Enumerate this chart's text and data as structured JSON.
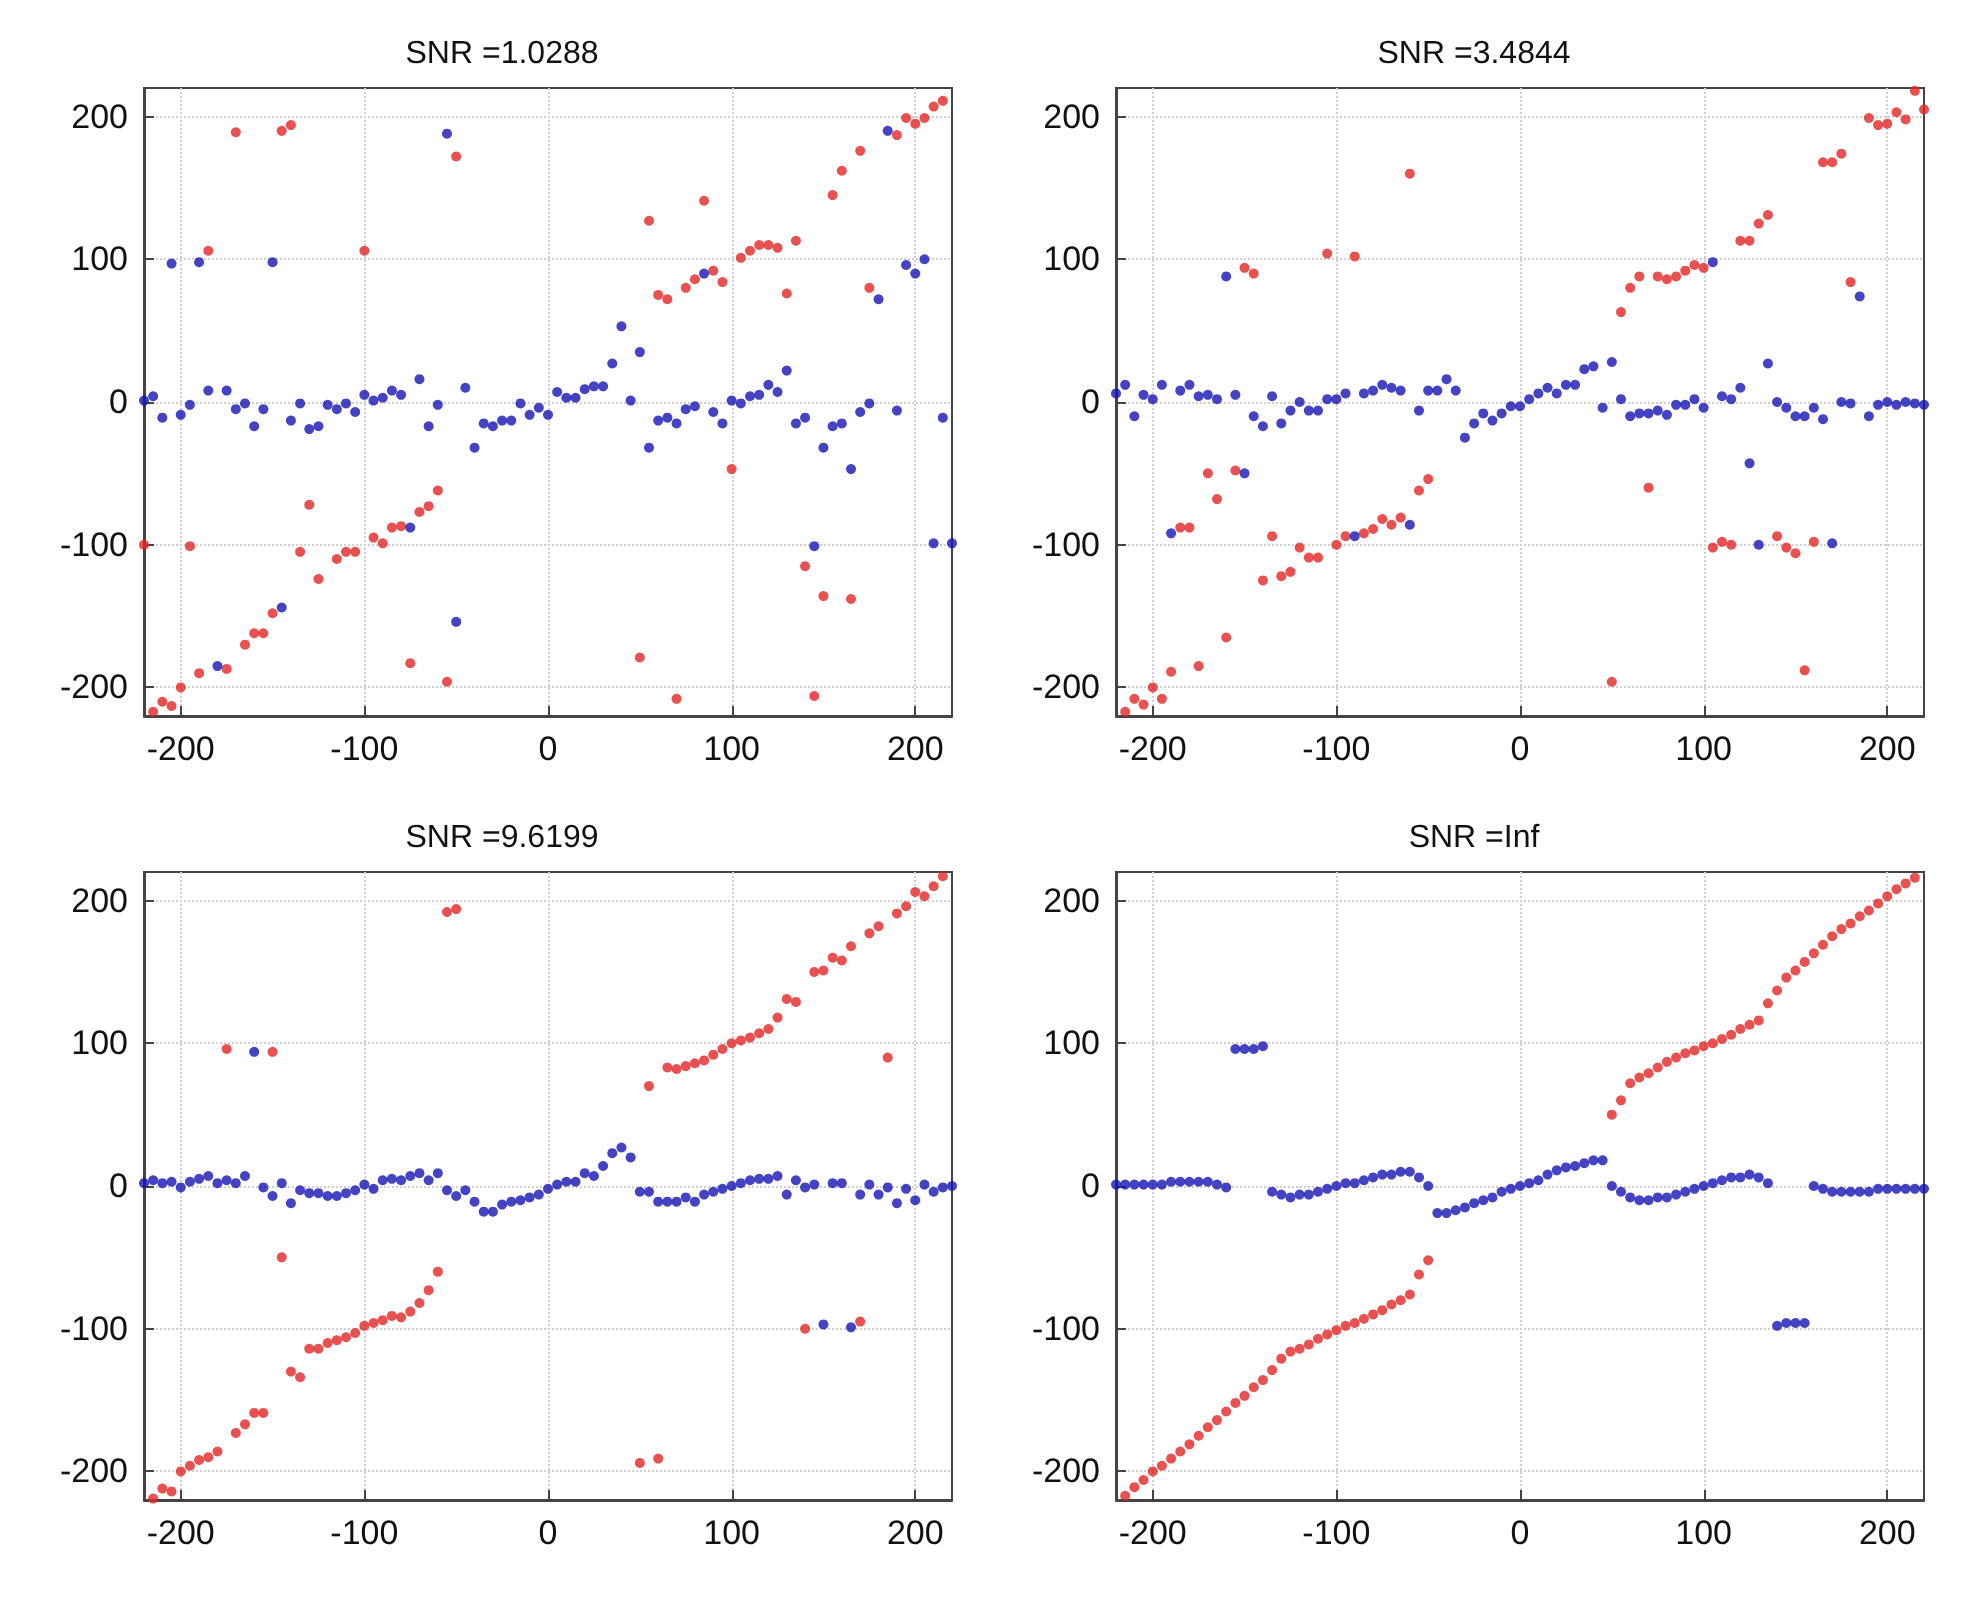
{
  "chart_data": [
    {
      "type": "scatter",
      "title": "SNR =1.0288",
      "xlim": [
        -220,
        220
      ],
      "ylim": [
        -220,
        220
      ],
      "xticks": [
        -200,
        -100,
        0,
        100,
        200
      ],
      "yticks": [
        -200,
        -100,
        0,
        100,
        200
      ],
      "grid": true,
      "marker": "circle",
      "series": [
        {
          "color": "#e32626",
          "x": [
            -220,
            -215,
            -210,
            -205,
            -200,
            -195,
            -190,
            -185,
            -175,
            -170,
            -165,
            -160,
            -155,
            -150,
            -145,
            -140,
            -135,
            -130,
            -125,
            -115,
            -110,
            -105,
            -100,
            -95,
            -90,
            -85,
            -80,
            -75,
            -70,
            -65,
            -60,
            -55,
            -50,
            50,
            55,
            60,
            65,
            70,
            75,
            80,
            85,
            90,
            95,
            100,
            105,
            110,
            115,
            120,
            125,
            130,
            135,
            140,
            145,
            150,
            155,
            160,
            165,
            170,
            175,
            190,
            195,
            200,
            205,
            210,
            215
          ],
          "values": [
            -100,
            -217,
            -210,
            -213,
            -200,
            -101,
            -190,
            106,
            -187,
            189,
            -170,
            -162,
            -162,
            -148,
            190,
            194,
            -105,
            -72,
            -124,
            -110,
            -105,
            -105,
            106,
            -95,
            -99,
            -88,
            -87,
            -183,
            -77,
            -73,
            -62,
            -196,
            172,
            -179,
            127,
            75,
            72,
            -208,
            80,
            86,
            141,
            92,
            84,
            -47,
            101,
            106,
            110,
            110,
            108,
            76,
            113,
            -115,
            -206,
            -136,
            145,
            162,
            -138,
            176,
            80,
            187,
            199,
            195,
            199,
            207,
            211
          ]
        },
        {
          "color": "#1414b4",
          "x": [
            -220,
            -215,
            -210,
            -205,
            -200,
            -195,
            -190,
            -185,
            -180,
            -175,
            -170,
            -165,
            -160,
            -155,
            -150,
            -145,
            -140,
            -135,
            -130,
            -125,
            -120,
            -115,
            -110,
            -105,
            -100,
            -95,
            -90,
            -85,
            -80,
            -75,
            -70,
            -65,
            -60,
            -55,
            -50,
            -45,
            -40,
            -35,
            -30,
            -25,
            -20,
            -15,
            -10,
            -5,
            0,
            5,
            10,
            15,
            20,
            25,
            30,
            35,
            40,
            45,
            50,
            55,
            60,
            65,
            70,
            75,
            80,
            85,
            90,
            95,
            100,
            105,
            110,
            115,
            120,
            125,
            130,
            135,
            140,
            145,
            150,
            155,
            160,
            165,
            170,
            175,
            180,
            185,
            190,
            195,
            200,
            205,
            210,
            215,
            220
          ],
          "values": [
            1,
            4,
            -11,
            97,
            -9,
            -2,
            98,
            8,
            -185,
            8,
            -5,
            -1,
            -17,
            -5,
            98,
            -144,
            -13,
            -1,
            -19,
            -17,
            -2,
            -5,
            -1,
            -7,
            5,
            1,
            3,
            8,
            5,
            -88,
            16,
            -17,
            -2,
            188,
            -154,
            10,
            -32,
            -15,
            -17,
            -13,
            -13,
            -1,
            -9,
            -4,
            -9,
            7,
            3,
            3,
            9,
            11,
            11,
            27,
            53,
            1,
            35,
            -32,
            -13,
            -11,
            -15,
            -5,
            -3,
            90,
            -7,
            -15,
            1,
            -1,
            4,
            5,
            12,
            7,
            22,
            -15,
            -11,
            -101,
            -32,
            -17,
            -15,
            -47,
            -7,
            -1,
            72,
            190,
            -6,
            96,
            90,
            100,
            -99,
            -11,
            -99
          ]
        }
      ]
    },
    {
      "type": "scatter",
      "title": "SNR =3.4844",
      "xlim": [
        -220,
        220
      ],
      "ylim": [
        -220,
        220
      ],
      "xticks": [
        -200,
        -100,
        0,
        100,
        200
      ],
      "yticks": [
        -200,
        -100,
        0,
        100,
        200
      ],
      "grid": true,
      "marker": "circle",
      "series": [
        {
          "color": "#e32626",
          "x": [
            -215,
            -210,
            -205,
            -200,
            -195,
            -190,
            -185,
            -180,
            -175,
            -170,
            -165,
            -160,
            -155,
            -150,
            -145,
            -140,
            -135,
            -130,
            -125,
            -120,
            -115,
            -110,
            -105,
            -100,
            -95,
            -90,
            -85,
            -80,
            -75,
            -70,
            -65,
            -60,
            -55,
            -50,
            50,
            55,
            60,
            65,
            70,
            75,
            80,
            85,
            90,
            95,
            100,
            105,
            110,
            115,
            120,
            125,
            130,
            135,
            140,
            145,
            150,
            155,
            160,
            165,
            170,
            175,
            180,
            190,
            195,
            200,
            205,
            210,
            215,
            220
          ],
          "values": [
            -217,
            -208,
            -212,
            -200,
            -208,
            -189,
            -88,
            -88,
            -185,
            -50,
            -68,
            -165,
            -48,
            94,
            90,
            -125,
            -94,
            -122,
            -119,
            -102,
            -109,
            -109,
            104,
            -100,
            -94,
            102,
            -92,
            -89,
            -82,
            -86,
            -81,
            160,
            -62,
            -54,
            -196,
            63,
            80,
            88,
            -60,
            88,
            86,
            88,
            92,
            96,
            94,
            -102,
            -98,
            -100,
            113,
            113,
            125,
            131,
            -94,
            -102,
            -106,
            -188,
            -98,
            168,
            168,
            174,
            84,
            199,
            194,
            195,
            203,
            198,
            218,
            205
          ]
        },
        {
          "color": "#1414b4",
          "x": [
            -220,
            -215,
            -210,
            -205,
            -200,
            -195,
            -190,
            -185,
            -180,
            -175,
            -170,
            -165,
            -160,
            -155,
            -150,
            -145,
            -140,
            -135,
            -130,
            -125,
            -120,
            -115,
            -110,
            -105,
            -100,
            -95,
            -90,
            -85,
            -80,
            -75,
            -70,
            -65,
            -60,
            -55,
            -50,
            -45,
            -40,
            -35,
            -30,
            -25,
            -20,
            -15,
            -10,
            -5,
            0,
            5,
            10,
            15,
            20,
            25,
            30,
            35,
            40,
            45,
            50,
            55,
            60,
            65,
            70,
            75,
            80,
            85,
            90,
            95,
            100,
            105,
            110,
            115,
            120,
            125,
            130,
            135,
            140,
            145,
            150,
            155,
            160,
            165,
            170,
            175,
            180,
            185,
            190,
            195,
            200,
            205,
            210,
            215,
            220
          ],
          "values": [
            6,
            12,
            -10,
            5,
            2,
            12,
            -92,
            8,
            12,
            4,
            5,
            2,
            88,
            5,
            -50,
            -10,
            -17,
            4,
            -15,
            -6,
            0,
            -6,
            -6,
            2,
            2,
            6,
            -94,
            6,
            8,
            12,
            10,
            8,
            -86,
            -6,
            8,
            8,
            16,
            8,
            -25,
            -15,
            -8,
            -13,
            -8,
            -3,
            -3,
            2,
            6,
            10,
            6,
            12,
            12,
            23,
            25,
            -4,
            28,
            2,
            -10,
            -8,
            -8,
            -6,
            -9,
            -2,
            -2,
            2,
            -4,
            98,
            4,
            2,
            10,
            -43,
            -100,
            27,
            0,
            -4,
            -10,
            -10,
            -4,
            -12,
            -99,
            0,
            -1,
            74,
            -10,
            -2,
            0,
            -2,
            0,
            -1,
            -2
          ]
        }
      ]
    },
    {
      "type": "scatter",
      "title": "SNR =9.6199",
      "xlim": [
        -220,
        220
      ],
      "ylim": [
        -220,
        220
      ],
      "xticks": [
        -200,
        -100,
        0,
        100,
        200
      ],
      "yticks": [
        -200,
        -100,
        0,
        100,
        200
      ],
      "grid": true,
      "marker": "circle",
      "series": [
        {
          "color": "#e32626",
          "x": [
            -215,
            -210,
            -205,
            -200,
            -195,
            -190,
            -185,
            -180,
            -175,
            -170,
            -165,
            -160,
            -155,
            -150,
            -145,
            -140,
            -135,
            -130,
            -125,
            -120,
            -115,
            -110,
            -105,
            -100,
            -95,
            -90,
            -85,
            -80,
            -75,
            -70,
            -65,
            -60,
            -55,
            -50,
            50,
            55,
            60,
            65,
            70,
            75,
            80,
            85,
            90,
            95,
            100,
            105,
            110,
            115,
            120,
            125,
            130,
            135,
            140,
            145,
            150,
            155,
            160,
            165,
            170,
            175,
            180,
            185,
            190,
            195,
            200,
            205,
            210,
            215
          ],
          "values": [
            -219,
            -212,
            -214,
            -200,
            -196,
            -192,
            -190,
            -186,
            96,
            -173,
            -167,
            -159,
            -159,
            94,
            -50,
            -130,
            -134,
            -114,
            -114,
            -110,
            -108,
            -106,
            -103,
            -98,
            -96,
            -94,
            -91,
            -92,
            -88,
            -82,
            -73,
            -60,
            192,
            194,
            -194,
            70,
            -191,
            83,
            82,
            84,
            86,
            88,
            92,
            96,
            100,
            102,
            104,
            107,
            110,
            118,
            131,
            129,
            -100,
            150,
            151,
            160,
            158,
            168,
            -95,
            177,
            182,
            90,
            191,
            196,
            206,
            203,
            210,
            217
          ]
        },
        {
          "color": "#1414b4",
          "x": [
            -220,
            -215,
            -210,
            -205,
            -200,
            -195,
            -190,
            -185,
            -180,
            -175,
            -170,
            -165,
            -160,
            -155,
            -150,
            -145,
            -140,
            -135,
            -130,
            -125,
            -120,
            -115,
            -110,
            -105,
            -100,
            -95,
            -90,
            -85,
            -80,
            -75,
            -70,
            -65,
            -60,
            -55,
            -50,
            -45,
            -40,
            -35,
            -30,
            -25,
            -20,
            -15,
            -10,
            -5,
            0,
            5,
            10,
            15,
            20,
            25,
            30,
            35,
            40,
            45,
            50,
            55,
            60,
            65,
            70,
            75,
            80,
            85,
            90,
            95,
            100,
            105,
            110,
            115,
            120,
            125,
            130,
            135,
            140,
            145,
            150,
            155,
            160,
            165,
            170,
            175,
            180,
            185,
            190,
            195,
            200,
            205,
            210,
            215,
            220
          ],
          "values": [
            2,
            4,
            2,
            3,
            -1,
            3,
            5,
            7,
            2,
            4,
            2,
            7,
            94,
            -1,
            -7,
            2,
            -12,
            -3,
            -5,
            -5,
            -7,
            -7,
            -5,
            -3,
            1,
            -2,
            4,
            5,
            4,
            7,
            9,
            4,
            9,
            -3,
            -7,
            -3,
            -11,
            -18,
            -18,
            -13,
            -11,
            -10,
            -8,
            -6,
            -2,
            1,
            3,
            3,
            9,
            7,
            14,
            23,
            27,
            20,
            -4,
            -4,
            -11,
            -11,
            -11,
            -8,
            -11,
            -6,
            -4,
            -2,
            0,
            2,
            4,
            5,
            5,
            7,
            -6,
            4,
            -1,
            1,
            -97,
            2,
            2,
            -99,
            -6,
            1,
            -6,
            -1,
            -12,
            -2,
            -10,
            1,
            -4,
            -1,
            0
          ]
        }
      ]
    },
    {
      "type": "scatter",
      "title": "SNR =Inf",
      "xlim": [
        -220,
        220
      ],
      "ylim": [
        -220,
        220
      ],
      "xticks": [
        -200,
        -100,
        0,
        100,
        200
      ],
      "yticks": [
        -200,
        -100,
        0,
        100,
        200
      ],
      "grid": true,
      "marker": "circle",
      "series": [
        {
          "color": "#e32626",
          "x": [
            -215,
            -210,
            -205,
            -200,
            -195,
            -190,
            -185,
            -180,
            -175,
            -170,
            -165,
            -160,
            -155,
            -150,
            -145,
            -140,
            -135,
            -130,
            -125,
            -120,
            -115,
            -110,
            -105,
            -100,
            -95,
            -90,
            -85,
            -80,
            -75,
            -70,
            -65,
            -60,
            -55,
            -50,
            50,
            55,
            60,
            65,
            70,
            75,
            80,
            85,
            90,
            95,
            100,
            105,
            110,
            115,
            120,
            125,
            130,
            135,
            140,
            145,
            150,
            155,
            160,
            165,
            170,
            175,
            180,
            185,
            190,
            195,
            200,
            205,
            210,
            215
          ],
          "values": [
            -217,
            -211,
            -206,
            -200,
            -196,
            -191,
            -186,
            -181,
            -175,
            -169,
            -164,
            -158,
            -152,
            -147,
            -141,
            -136,
            -129,
            -121,
            -116,
            -114,
            -111,
            -107,
            -104,
            -101,
            -98,
            -96,
            -93,
            -90,
            -87,
            -83,
            -80,
            -76,
            -62,
            -52,
            50,
            60,
            72,
            76,
            79,
            83,
            87,
            90,
            93,
            95,
            98,
            100,
            103,
            106,
            110,
            113,
            116,
            128,
            137,
            146,
            151,
            157,
            163,
            169,
            175,
            180,
            184,
            189,
            193,
            198,
            203,
            208,
            212,
            216
          ]
        },
        {
          "color": "#1414b4",
          "x": [
            -220,
            -215,
            -210,
            -205,
            -200,
            -195,
            -190,
            -185,
            -180,
            -175,
            -170,
            -165,
            -160,
            -155,
            -150,
            -145,
            -140,
            -135,
            -130,
            -125,
            -120,
            -115,
            -110,
            -105,
            -100,
            -95,
            -90,
            -85,
            -80,
            -75,
            -70,
            -65,
            -60,
            -55,
            -50,
            -45,
            -40,
            -35,
            -30,
            -25,
            -20,
            -15,
            -10,
            -5,
            0,
            5,
            10,
            15,
            20,
            25,
            30,
            35,
            40,
            45,
            50,
            55,
            60,
            65,
            70,
            75,
            80,
            85,
            90,
            95,
            100,
            105,
            110,
            115,
            120,
            125,
            130,
            135,
            140,
            145,
            150,
            155,
            160,
            165,
            170,
            175,
            180,
            185,
            190,
            195,
            200,
            205,
            210,
            215,
            220
          ],
          "values": [
            1,
            1,
            1,
            1,
            1,
            1,
            3,
            3,
            3,
            3,
            3,
            1,
            -1,
            96,
            96,
            96,
            98,
            -4,
            -6,
            -8,
            -6,
            -6,
            -4,
            -2,
            0,
            2,
            2,
            4,
            6,
            8,
            8,
            10,
            10,
            6,
            0,
            -19,
            -19,
            -17,
            -15,
            -12,
            -10,
            -8,
            -4,
            -2,
            0,
            2,
            4,
            8,
            11,
            13,
            14,
            16,
            18,
            18,
            0,
            -4,
            -8,
            -10,
            -10,
            -8,
            -8,
            -6,
            -4,
            -2,
            0,
            2,
            4,
            6,
            6,
            8,
            6,
            2,
            -98,
            -96,
            -96,
            -96,
            0,
            -2,
            -4,
            -4,
            -4,
            -4,
            -4,
            -2,
            -2,
            -2,
            -2,
            -2,
            -2
          ]
        }
      ]
    }
  ]
}
